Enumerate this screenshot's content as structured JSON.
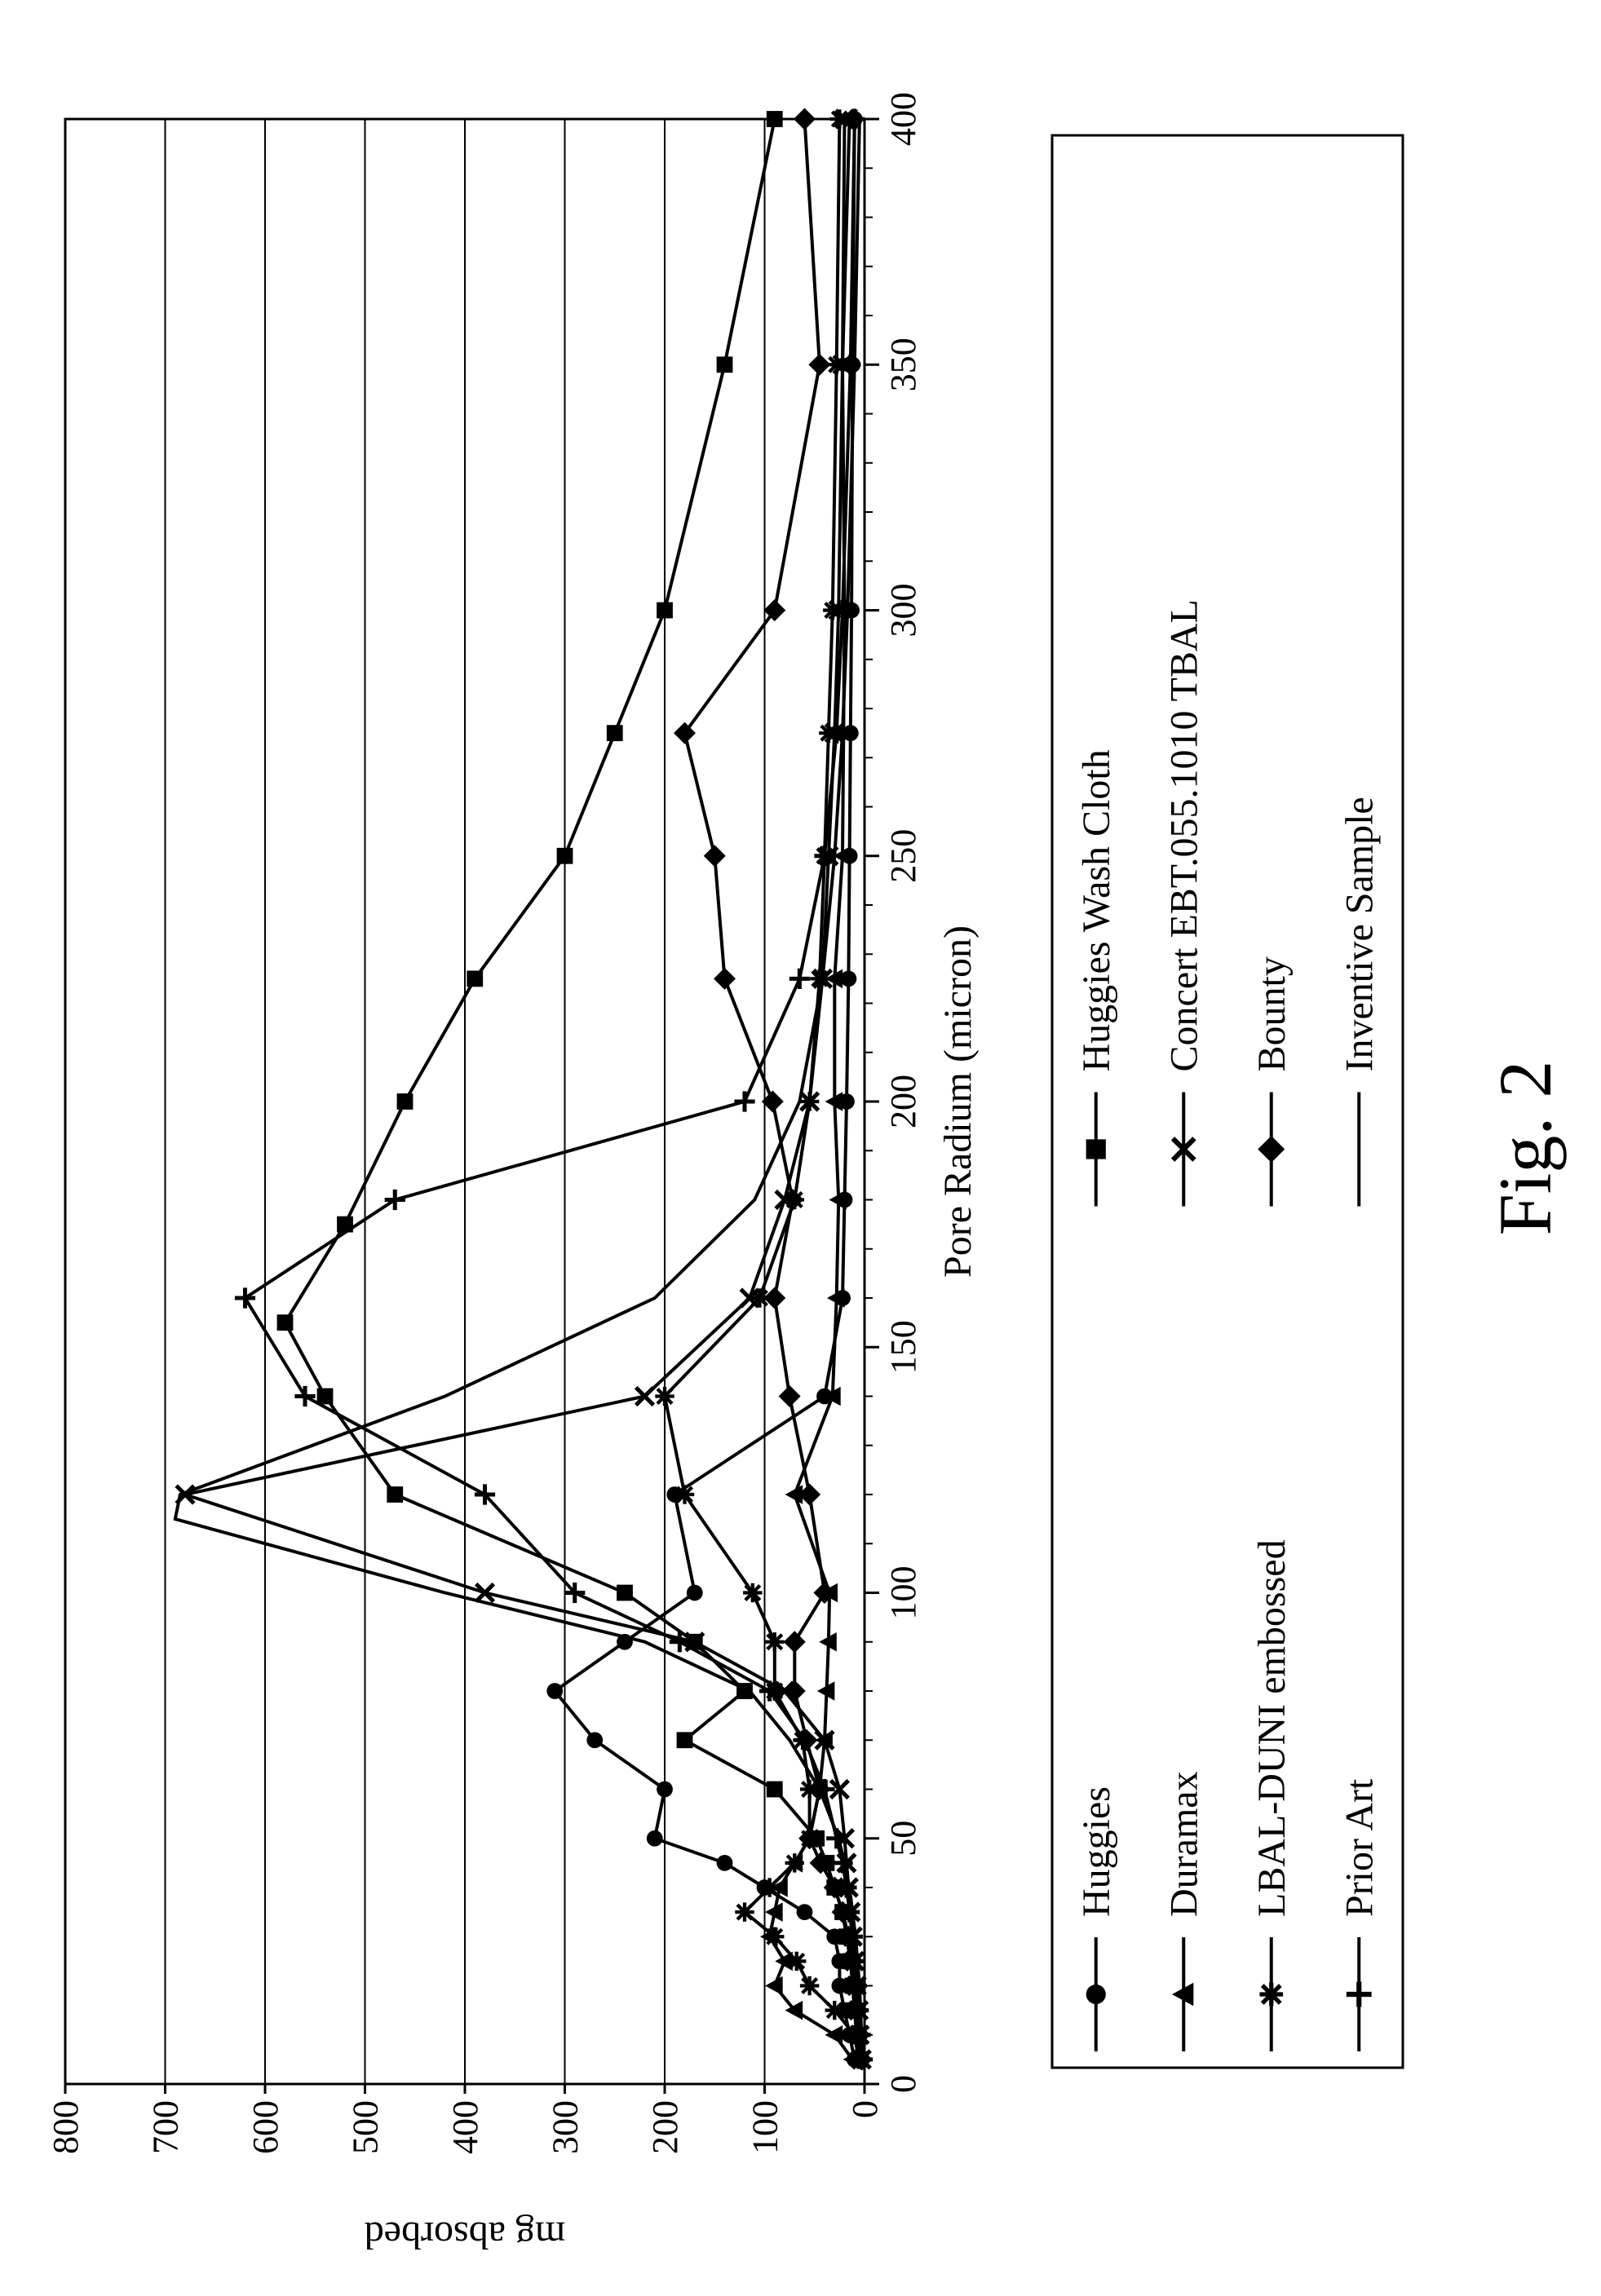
{
  "caption": "Fig. 2",
  "chart": {
    "type": "line",
    "background_color": "#ffffff",
    "grid_color": "#000000",
    "axis_color": "#000000",
    "line_color": "#000000",
    "text_color": "#000000",
    "font_family": "Times New Roman",
    "x_axis": {
      "label": "Pore Radium (micron)",
      "min": 0,
      "max": 400,
      "ticks": [
        0,
        50,
        100,
        150,
        200,
        250,
        300,
        350,
        400
      ],
      "minor_tick_step": 10,
      "label_fontsize": 48,
      "tick_fontsize": 44
    },
    "y_axis": {
      "label": "mg absorbed",
      "min": 0,
      "max": 800,
      "ticks": [
        0,
        100,
        200,
        300,
        400,
        500,
        600,
        700,
        800
      ],
      "grid": true,
      "label_fontsize": 48,
      "tick_fontsize": 44
    },
    "legend": {
      "columns": 3,
      "box": true,
      "fontsize": 48,
      "items": [
        {
          "label": "Huggies",
          "marker": "circle-filled",
          "row": 0,
          "col": 0
        },
        {
          "label": "Huggies Wash Cloth",
          "marker": "square-filled",
          "row": 0,
          "col": 1
        },
        {
          "label": "Duramax",
          "marker": "triangle-filled",
          "row": 1,
          "col": 0
        },
        {
          "label": "Concert EBT.055.1010 TBAL",
          "marker": "x",
          "row": 1,
          "col": 1
        },
        {
          "label": "LBAL-DUNI embossed",
          "marker": "asterisk",
          "row": 2,
          "col": 0
        },
        {
          "label": "Bounty",
          "marker": "diamond-filled",
          "row": 2,
          "col": 1
        },
        {
          "label": "Prior Art",
          "marker": "plus",
          "row": 3,
          "col": 0
        },
        {
          "label": "Inventive Sample",
          "marker": "none",
          "row": 3,
          "col": 1
        }
      ]
    },
    "series": [
      {
        "name": "Huggies",
        "marker": "circle-filled",
        "points": [
          [
            5,
            10
          ],
          [
            10,
            15
          ],
          [
            15,
            20
          ],
          [
            20,
            25
          ],
          [
            25,
            25
          ],
          [
            30,
            30
          ],
          [
            35,
            60
          ],
          [
            40,
            100
          ],
          [
            45,
            140
          ],
          [
            50,
            210
          ],
          [
            60,
            200
          ],
          [
            70,
            270
          ],
          [
            80,
            310
          ],
          [
            90,
            240
          ],
          [
            100,
            170
          ],
          [
            120,
            190
          ],
          [
            140,
            40
          ],
          [
            160,
            22
          ],
          [
            180,
            20
          ],
          [
            200,
            18
          ],
          [
            225,
            16
          ],
          [
            250,
            15
          ],
          [
            275,
            14
          ],
          [
            300,
            13
          ],
          [
            350,
            12
          ],
          [
            400,
            10
          ]
        ]
      },
      {
        "name": "Huggies Wash Cloth",
        "marker": "square-filled",
        "points": [
          [
            5,
            5
          ],
          [
            10,
            8
          ],
          [
            15,
            10
          ],
          [
            20,
            12
          ],
          [
            25,
            14
          ],
          [
            30,
            18
          ],
          [
            35,
            22
          ],
          [
            40,
            30
          ],
          [
            45,
            38
          ],
          [
            50,
            48
          ],
          [
            60,
            90
          ],
          [
            70,
            180
          ],
          [
            80,
            120
          ],
          [
            90,
            170
          ],
          [
            100,
            240
          ],
          [
            120,
            470
          ],
          [
            140,
            540
          ],
          [
            155,
            580
          ],
          [
            175,
            520
          ],
          [
            200,
            460
          ],
          [
            225,
            390
          ],
          [
            250,
            300
          ],
          [
            275,
            250
          ],
          [
            300,
            200
          ],
          [
            350,
            140
          ],
          [
            400,
            90
          ]
        ]
      },
      {
        "name": "Duramax",
        "marker": "triangle-filled",
        "points": [
          [
            5,
            12
          ],
          [
            10,
            30
          ],
          [
            15,
            70
          ],
          [
            20,
            90
          ],
          [
            25,
            80
          ],
          [
            30,
            95
          ],
          [
            35,
            90
          ],
          [
            40,
            85
          ],
          [
            45,
            70
          ],
          [
            50,
            55
          ],
          [
            60,
            45
          ],
          [
            70,
            40
          ],
          [
            80,
            38
          ],
          [
            90,
            36
          ],
          [
            100,
            35
          ],
          [
            120,
            70
          ],
          [
            140,
            32
          ],
          [
            160,
            28
          ],
          [
            180,
            26
          ],
          [
            200,
            30
          ],
          [
            225,
            30
          ],
          [
            250,
            22
          ],
          [
            275,
            21
          ],
          [
            300,
            20
          ],
          [
            350,
            22
          ],
          [
            400,
            15
          ]
        ]
      },
      {
        "name": "Concert EBT.055.1010 TBAL",
        "marker": "x",
        "points": [
          [
            5,
            3
          ],
          [
            10,
            5
          ],
          [
            15,
            6
          ],
          [
            20,
            8
          ],
          [
            25,
            10
          ],
          [
            30,
            12
          ],
          [
            35,
            14
          ],
          [
            40,
            16
          ],
          [
            45,
            18
          ],
          [
            50,
            20
          ],
          [
            60,
            25
          ],
          [
            70,
            40
          ],
          [
            80,
            80
          ],
          [
            90,
            170
          ],
          [
            100,
            380
          ],
          [
            120,
            680
          ],
          [
            140,
            220
          ],
          [
            160,
            115
          ],
          [
            180,
            80
          ],
          [
            200,
            55
          ],
          [
            225,
            42
          ],
          [
            250,
            36
          ],
          [
            275,
            30
          ],
          [
            300,
            26
          ],
          [
            350,
            22
          ],
          [
            400,
            20
          ]
        ]
      },
      {
        "name": "LBAL-DUNI embossed",
        "marker": "asterisk",
        "points": [
          [
            5,
            6
          ],
          [
            10,
            10
          ],
          [
            15,
            30
          ],
          [
            20,
            55
          ],
          [
            25,
            68
          ],
          [
            30,
            90
          ],
          [
            35,
            120
          ],
          [
            40,
            95
          ],
          [
            45,
            70
          ],
          [
            50,
            55
          ],
          [
            60,
            55
          ],
          [
            70,
            62
          ],
          [
            80,
            90
          ],
          [
            90,
            90
          ],
          [
            100,
            112
          ],
          [
            120,
            180
          ],
          [
            140,
            200
          ],
          [
            160,
            105
          ],
          [
            180,
            70
          ],
          [
            200,
            55
          ],
          [
            225,
            45
          ],
          [
            250,
            40
          ],
          [
            275,
            36
          ],
          [
            300,
            32
          ],
          [
            350,
            28
          ],
          [
            400,
            25
          ]
        ]
      },
      {
        "name": "Bounty",
        "marker": "diamond-filled",
        "points": [
          [
            5,
            3
          ],
          [
            10,
            5
          ],
          [
            15,
            7
          ],
          [
            20,
            9
          ],
          [
            25,
            12
          ],
          [
            30,
            16
          ],
          [
            35,
            22
          ],
          [
            40,
            30
          ],
          [
            45,
            44
          ],
          [
            50,
            55
          ],
          [
            60,
            45
          ],
          [
            70,
            58
          ],
          [
            80,
            70
          ],
          [
            90,
            70
          ],
          [
            100,
            40
          ],
          [
            120,
            55
          ],
          [
            140,
            75
          ],
          [
            160,
            90
          ],
          [
            180,
            72
          ],
          [
            200,
            92
          ],
          [
            225,
            140
          ],
          [
            250,
            150
          ],
          [
            275,
            180
          ],
          [
            300,
            90
          ],
          [
            350,
            45
          ],
          [
            400,
            60
          ]
        ]
      },
      {
        "name": "Prior Art",
        "marker": "plus",
        "points": [
          [
            5,
            2
          ],
          [
            10,
            4
          ],
          [
            15,
            6
          ],
          [
            20,
            8
          ],
          [
            25,
            10
          ],
          [
            30,
            12
          ],
          [
            35,
            15
          ],
          [
            40,
            18
          ],
          [
            45,
            22
          ],
          [
            50,
            28
          ],
          [
            60,
            40
          ],
          [
            70,
            60
          ],
          [
            80,
            95
          ],
          [
            90,
            185
          ],
          [
            100,
            290
          ],
          [
            120,
            380
          ],
          [
            140,
            560
          ],
          [
            160,
            620
          ],
          [
            180,
            470
          ],
          [
            200,
            120
          ],
          [
            225,
            65
          ],
          [
            250,
            40
          ],
          [
            275,
            28
          ],
          [
            300,
            22
          ],
          [
            350,
            14
          ],
          [
            400,
            10
          ]
        ]
      },
      {
        "name": "Inventive Sample",
        "marker": "none",
        "points": [
          [
            5,
            2
          ],
          [
            10,
            3
          ],
          [
            15,
            4
          ],
          [
            20,
            5
          ],
          [
            25,
            7
          ],
          [
            30,
            9
          ],
          [
            35,
            12
          ],
          [
            40,
            15
          ],
          [
            45,
            20
          ],
          [
            50,
            26
          ],
          [
            60,
            45
          ],
          [
            70,
            75
          ],
          [
            80,
            115
          ],
          [
            90,
            220
          ],
          [
            100,
            420
          ],
          [
            115,
            690
          ],
          [
            120,
            685
          ],
          [
            140,
            420
          ],
          [
            160,
            210
          ],
          [
            180,
            110
          ],
          [
            200,
            65
          ],
          [
            225,
            42
          ],
          [
            250,
            30
          ],
          [
            275,
            22
          ],
          [
            300,
            17
          ],
          [
            350,
            10
          ],
          [
            400,
            5
          ]
        ]
      }
    ]
  }
}
